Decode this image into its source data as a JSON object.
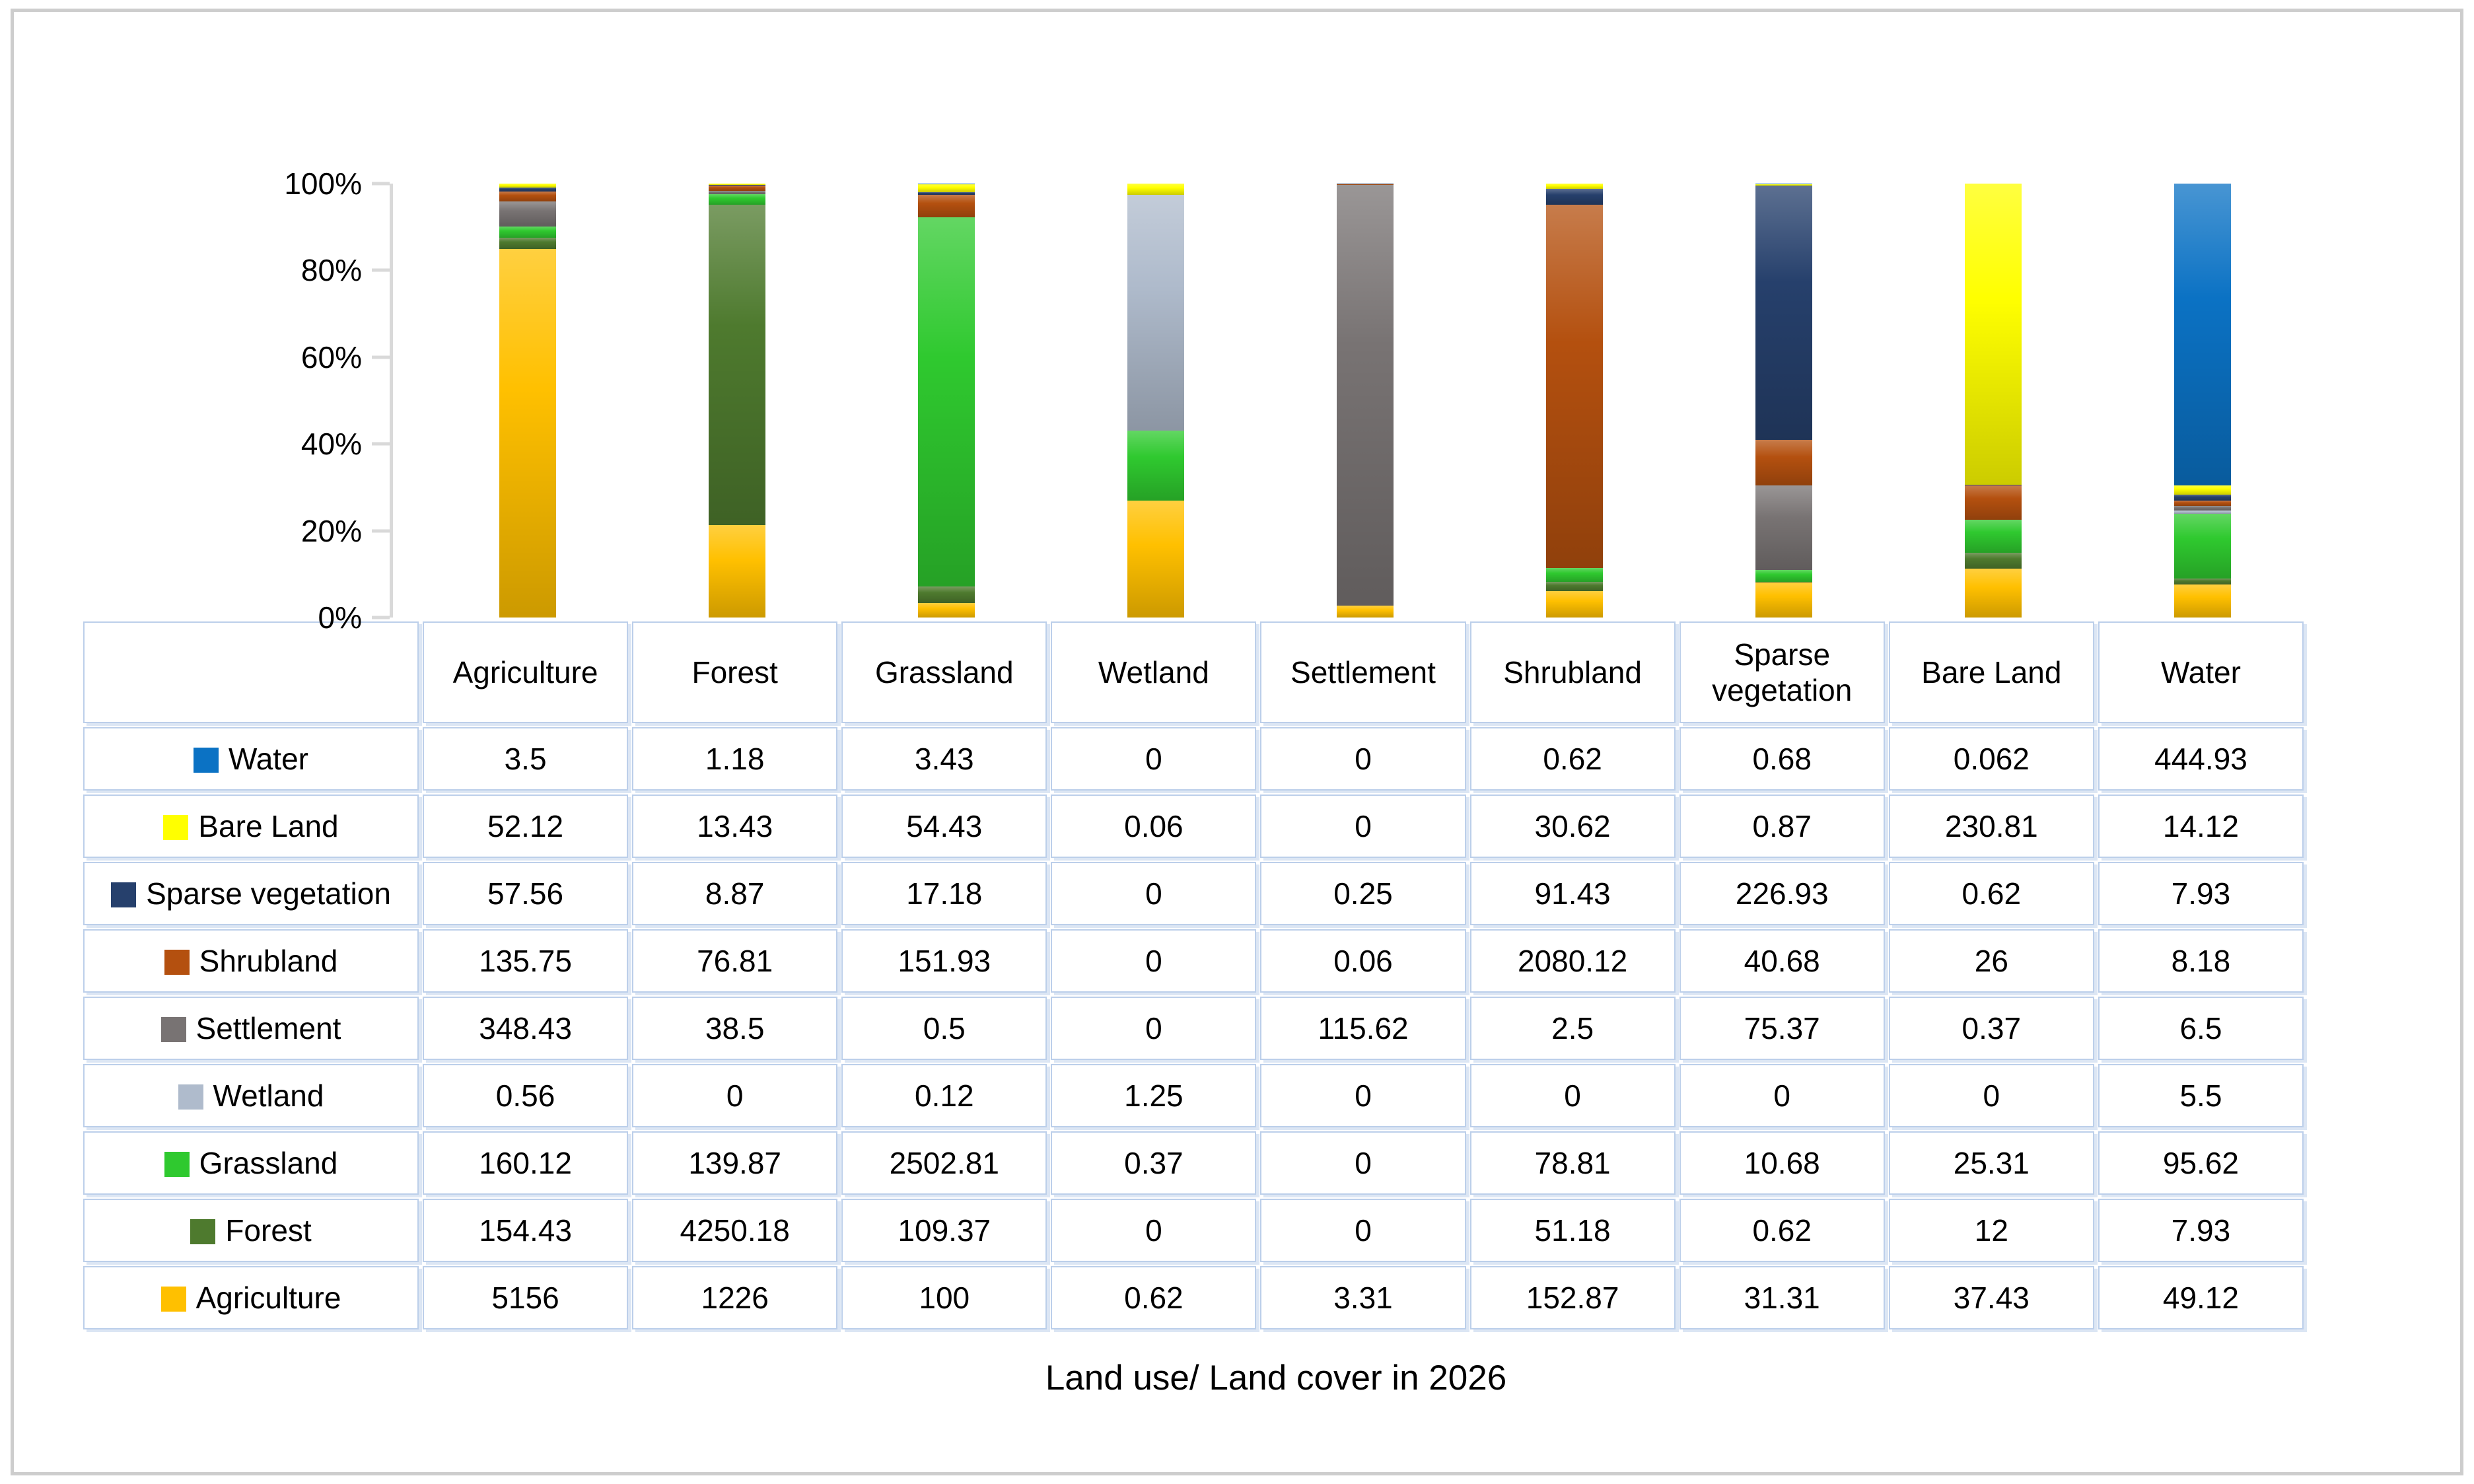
{
  "chart_data": {
    "type": "bar",
    "stacked": true,
    "percent_stacked": true,
    "title": "Land use/ Land cover in 2026",
    "categories": [
      "Agriculture",
      "Forest",
      "Grassland",
      "Wetland",
      "Settlement",
      "Shrubland",
      "Sparse vegetation",
      "Bare Land",
      "Water"
    ],
    "series": [
      {
        "name": "Water",
        "color": "#0B72C4",
        "values": [
          3.5,
          1.18,
          3.43,
          0,
          0,
          0.62,
          0.68,
          0.062,
          444.93
        ]
      },
      {
        "name": "Bare Land",
        "color": "#FFFF00",
        "values": [
          52.12,
          13.43,
          54.43,
          0.06,
          0,
          30.62,
          0.87,
          230.81,
          14.12
        ]
      },
      {
        "name": "Sparse vegetation",
        "color": "#26406C",
        "values": [
          57.56,
          8.87,
          17.18,
          0,
          0.25,
          91.43,
          226.93,
          0.62,
          7.93
        ]
      },
      {
        "name": "Shrubland",
        "color": "#B4500F",
        "values": [
          135.75,
          76.81,
          151.93,
          0,
          0.06,
          2080.12,
          40.68,
          26,
          8.18
        ]
      },
      {
        "name": "Settlement",
        "color": "#787373",
        "values": [
          348.43,
          38.5,
          0.5,
          0,
          115.62,
          2.5,
          75.37,
          0.37,
          6.5
        ]
      },
      {
        "name": "Wetland",
        "color": "#AFBBCC",
        "values": [
          0.56,
          0,
          0.12,
          1.25,
          0,
          0,
          0,
          0,
          5.5
        ]
      },
      {
        "name": "Grassland",
        "color": "#2FC92F",
        "values": [
          160.12,
          139.87,
          2502.81,
          0.37,
          0,
          78.81,
          10.68,
          25.31,
          95.62
        ]
      },
      {
        "name": "Forest",
        "color": "#4E7A2E",
        "values": [
          154.43,
          4250.18,
          109.37,
          0,
          0,
          51.18,
          0.62,
          12,
          7.93
        ]
      },
      {
        "name": "Agriculture",
        "color": "#FFC000",
        "values": [
          5156,
          1226,
          100,
          0.62,
          3.31,
          152.87,
          31.31,
          37.43,
          49.12
        ]
      }
    ],
    "stack_order_bottom_to_top": [
      "Agriculture",
      "Forest",
      "Grassland",
      "Wetland",
      "Settlement",
      "Shrubland",
      "Sparse vegetation",
      "Bare Land",
      "Water"
    ],
    "y_axis": {
      "ticks": [
        "0%",
        "20%",
        "40%",
        "60%",
        "80%",
        "100%"
      ],
      "range": [
        0,
        100
      ],
      "grid": false
    },
    "axis_color": "#D9D9D9",
    "table_border_color": "#BCCFEA",
    "legend_position": "table-left-column"
  }
}
